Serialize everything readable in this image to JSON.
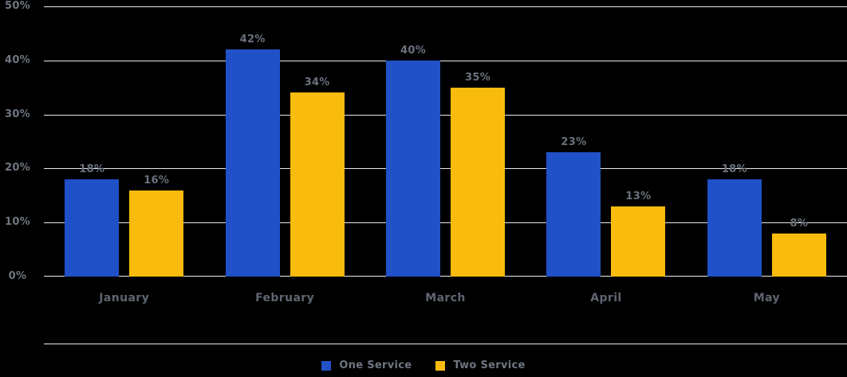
{
  "chart_data": {
    "type": "bar",
    "title": "",
    "xlabel": "",
    "ylabel": "",
    "categories": [
      "January",
      "February",
      "March",
      "April",
      "May"
    ],
    "series": [
      {
        "name": "One Service",
        "color": "#2151C8",
        "values": [
          18,
          42,
          40,
          23,
          18
        ]
      },
      {
        "name": "Two Service",
        "color": "#F9BB0D",
        "values": [
          16,
          34,
          35,
          13,
          8
        ]
      }
    ],
    "value_suffix": "%",
    "y_ticks": [
      0,
      10,
      20,
      30,
      40,
      50
    ],
    "ylim": [
      0,
      50
    ],
    "grid": true,
    "legend_position": "bottom-center",
    "colors": {
      "background": "#000000",
      "gridline": "#E9E9E9",
      "axis_line": "#EFEFEF",
      "tick_label": "#6E7680",
      "data_label": "#69717C",
      "category_label": "#5E6570",
      "legend_label": "#6E7680"
    }
  }
}
